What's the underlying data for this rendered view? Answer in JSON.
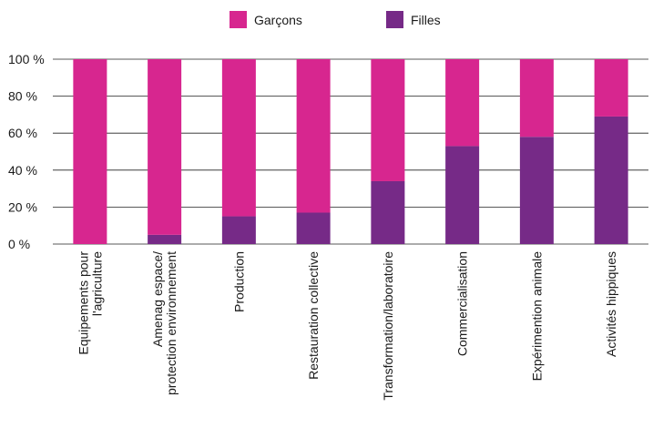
{
  "chart_data": {
    "type": "bar",
    "stacked": true,
    "normalized": true,
    "categories": [
      [
        "Equipements pour",
        "l'agriculture"
      ],
      [
        "Amenag espace/",
        "protection environnement"
      ],
      [
        "Production"
      ],
      [
        "Restauration collective"
      ],
      [
        "Transformation/laboratoire"
      ],
      [
        "Commercialisation"
      ],
      [
        "Expérimention animale"
      ],
      [
        "Activités hippiques"
      ]
    ],
    "series": [
      {
        "name": "Filles",
        "color": "#762a87",
        "values": [
          0,
          5,
          15,
          17,
          34,
          53,
          58,
          69
        ]
      },
      {
        "name": "Garçons",
        "color": "#d7268f",
        "values": [
          100,
          95,
          85,
          83,
          66,
          47,
          42,
          31
        ]
      }
    ],
    "legend": {
      "placement": "top",
      "order": [
        "Garçons",
        "Filles"
      ]
    },
    "y_ticks": [
      "0 %",
      "20 %",
      "40 %",
      "60 %",
      "80 %",
      "100 %"
    ],
    "ylim": [
      0,
      100
    ],
    "grid": true
  }
}
